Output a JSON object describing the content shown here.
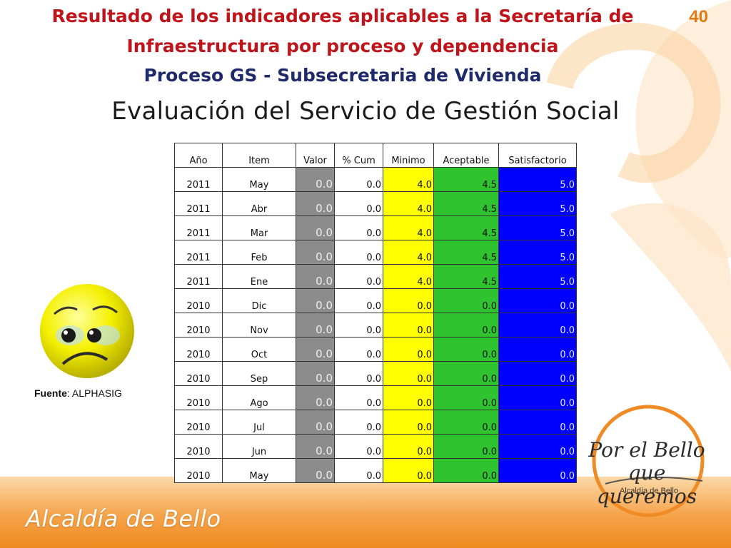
{
  "slide": {
    "title_line1": "Resultado de los indicadores aplicables a la Secretaría de",
    "title_line2": "Infraestructura por proceso y dependencia",
    "title_line3": "Proceso GS - Subsecretaria de Vivienda",
    "page_number": "40",
    "section_title": "Evaluación del Servicio de Gestión Social",
    "source_label": "Fuente",
    "source_value": ": ALPHASIG",
    "footer_brand": "Alcaldía de Bello",
    "logo_line1": "Por el Bello",
    "logo_line2": "que queremos",
    "logo_sub": "Alcaldía de Bello"
  },
  "colors": {
    "title_red": "#c0141b",
    "title_blue": "#1f2a6b",
    "valor_gray": "#8c8c8c",
    "minimo_yellow": "#ffff00",
    "aceptable_green": "#2fc42f",
    "satisfactorio_blue": "#0000ff",
    "brand_orange": "#ef8a1e"
  },
  "icons": {
    "face": "sad-face-icon"
  },
  "table": {
    "headers": [
      "Año",
      "Item",
      "Valor",
      "% Cum",
      "Minimo",
      "Aceptable",
      "Satisfactorio"
    ],
    "rows": [
      [
        "2011",
        "May",
        "0.0",
        "0.0",
        "4.0",
        "4.5",
        "5.0"
      ],
      [
        "2011",
        "Abr",
        "0.0",
        "0.0",
        "4.0",
        "4.5",
        "5.0"
      ],
      [
        "2011",
        "Mar",
        "0.0",
        "0.0",
        "4.0",
        "4.5",
        "5.0"
      ],
      [
        "2011",
        "Feb",
        "0.0",
        "0.0",
        "4.0",
        "4.5",
        "5.0"
      ],
      [
        "2011",
        "Ene",
        "0.0",
        "0.0",
        "4.0",
        "4.5",
        "5.0"
      ],
      [
        "2010",
        "Dic",
        "0.0",
        "0.0",
        "0.0",
        "0.0",
        "0.0"
      ],
      [
        "2010",
        "Nov",
        "0.0",
        "0.0",
        "0.0",
        "0.0",
        "0.0"
      ],
      [
        "2010",
        "Oct",
        "0.0",
        "0.0",
        "0.0",
        "0.0",
        "0.0"
      ],
      [
        "2010",
        "Sep",
        "0.0",
        "0.0",
        "0.0",
        "0.0",
        "0.0"
      ],
      [
        "2010",
        "Ago",
        "0.0",
        "0.0",
        "0.0",
        "0.0",
        "0.0"
      ],
      [
        "2010",
        "Jul",
        "0.0",
        "0.0",
        "0.0",
        "0.0",
        "0.0"
      ],
      [
        "2010",
        "Jun",
        "0.0",
        "0.0",
        "0.0",
        "0.0",
        "0.0"
      ],
      [
        "2010",
        "May",
        "0.0",
        "0.0",
        "0.0",
        "0.0",
        "0.0"
      ]
    ]
  }
}
